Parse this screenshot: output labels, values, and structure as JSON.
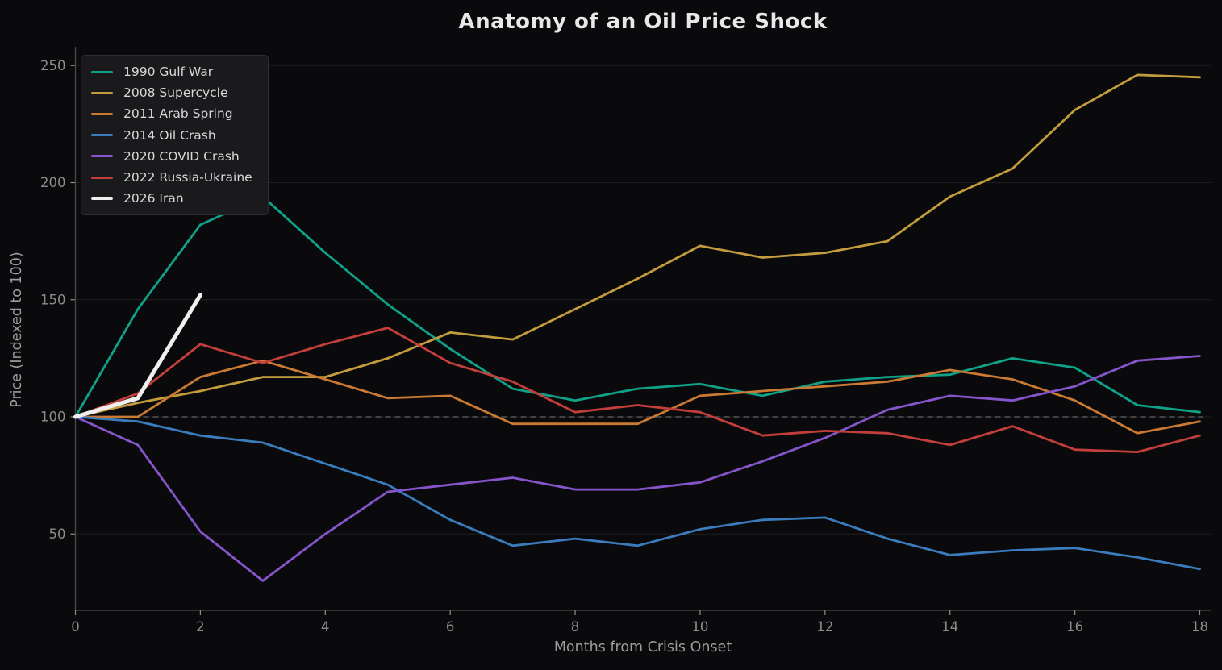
{
  "figure": {
    "background": "#0a0a0c"
  },
  "chart_data": {
    "type": "line",
    "title": "Anatomy of an Oil Price Shock",
    "xlabel": "Months from Crisis Onset",
    "ylabel": "Price (Indexed to 100)",
    "xlim": [
      0,
      18
    ],
    "ylim": [
      18,
      258
    ],
    "xtick_values": [
      0,
      2,
      4,
      6,
      8,
      10,
      12,
      14,
      16,
      18
    ],
    "xticks": [
      "0",
      "2",
      "4",
      "6",
      "8",
      "10",
      "12",
      "14",
      "16",
      "18"
    ],
    "ytick_values": [
      50,
      100,
      150,
      200,
      250
    ],
    "yticks": [
      "50",
      "100",
      "150",
      "200",
      "250"
    ],
    "grid": "horizontal-faint",
    "grid_color": "#1e1e21",
    "baseline": 100,
    "baseline_style": "dashed-gray",
    "legend_position": "upper-left",
    "x_months": [
      0,
      1,
      2,
      3,
      4,
      5,
      6,
      7,
      8,
      9,
      10,
      11,
      12,
      13,
      14,
      15,
      16,
      17,
      18
    ],
    "series": [
      {
        "name": "1990 Gulf War",
        "color": "#10a288",
        "linewidth": 2.8,
        "values": [
          100,
          146,
          182,
          194,
          170,
          148,
          129,
          112,
          107,
          112,
          114,
          109,
          115,
          117,
          118,
          125,
          121,
          105,
          102
        ]
      },
      {
        "name": "2008 Supercycle",
        "color": "#c39d3d",
        "linewidth": 2.8,
        "values": [
          100,
          106,
          111,
          117,
          117,
          125,
          136,
          133,
          146,
          159,
          173,
          168,
          170,
          175,
          194,
          206,
          231,
          246,
          245
        ]
      },
      {
        "name": "2011 Arab Spring",
        "color": "#cb7a33",
        "linewidth": 2.8,
        "values": [
          100,
          100,
          117,
          124,
          116,
          108,
          109,
          97,
          97,
          97,
          109,
          111,
          113,
          115,
          120,
          116,
          107,
          93,
          98
        ]
      },
      {
        "name": "2014 Oil Crash",
        "color": "#3a7cbd",
        "linewidth": 2.8,
        "values": [
          100,
          98,
          92,
          89,
          80,
          71,
          56,
          45,
          48,
          45,
          52,
          56,
          57,
          48,
          41,
          43,
          44,
          40,
          35
        ]
      },
      {
        "name": "2020 COVID Crash",
        "color": "#8655cb",
        "linewidth": 2.8,
        "values": [
          100,
          88,
          51,
          30,
          50,
          68,
          71,
          74,
          69,
          69,
          72,
          81,
          91,
          103,
          109,
          107,
          113,
          124,
          126
        ]
      },
      {
        "name": "2022 Russia-Ukraine",
        "color": "#c23f3b",
        "linewidth": 2.8,
        "values": [
          100,
          110,
          131,
          123,
          131,
          138,
          123,
          115,
          102,
          105,
          102,
          92,
          94,
          93,
          88,
          96,
          86,
          85,
          92
        ]
      },
      {
        "name": "2026 Iran",
        "color": "#efefef",
        "linewidth": 5,
        "values": [
          100,
          108,
          152
        ]
      }
    ]
  }
}
